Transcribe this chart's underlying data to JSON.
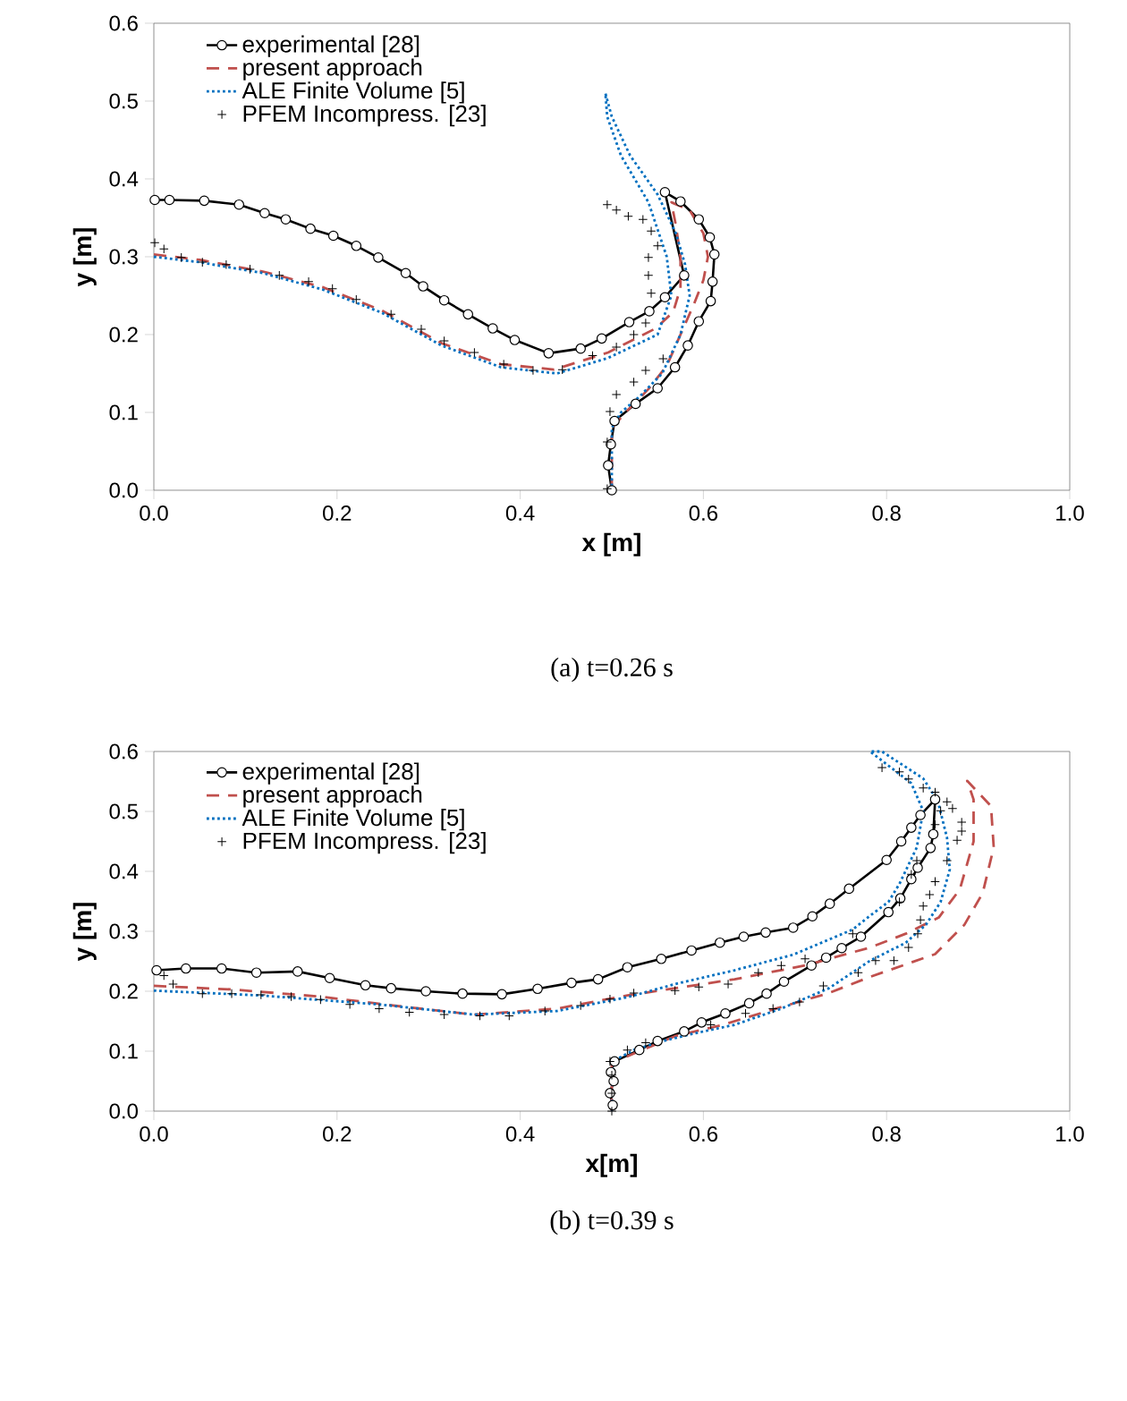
{
  "chart_data": [
    {
      "type": "line",
      "xlabel": "x [m]",
      "ylabel": "y [m]",
      "annotations": [
        "(a) t=0.26 s"
      ],
      "legend": "top left",
      "grid": false,
      "xlim": [
        0,
        1
      ],
      "ylim": [
        0,
        0.6
      ],
      "xticks": [
        {
          "value": 0,
          "label": "0.0"
        },
        {
          "value": 0.2,
          "label": "0.2"
        },
        {
          "value": 0.4,
          "label": "0.4"
        },
        {
          "value": 0.6,
          "label": "0.6"
        },
        {
          "value": 0.8,
          "label": "0.8"
        },
        {
          "value": 1,
          "label": "1.0"
        }
      ],
      "yticks": [
        {
          "value": 0,
          "label": "0.0"
        },
        {
          "value": 0.1,
          "label": "0.1"
        },
        {
          "value": 0.2,
          "label": "0.2"
        },
        {
          "value": 0.3,
          "label": "0.3"
        },
        {
          "value": 0.4,
          "label": "0.4"
        },
        {
          "value": 0.5,
          "label": "0.5"
        },
        {
          "value": 0.6,
          "label": "0.6"
        }
      ],
      "series": [
        {
          "name": "experimental [28]",
          "color": "#000000",
          "marker": "circle",
          "line_style": "solid",
          "x": [
            0.001,
            0.017,
            0.055,
            0.093,
            0.121,
            0.144,
            0.171,
            0.196,
            0.221,
            0.245,
            0.275,
            0.294,
            0.317,
            0.343,
            0.37,
            0.394,
            0.431,
            0.466,
            0.489,
            0.519,
            0.541,
            0.558,
            0.579,
            0.558,
            0.575,
            0.595,
            0.607,
            0.612,
            0.61,
            0.608,
            0.595,
            0.583,
            0.569,
            0.55,
            0.526,
            0.503,
            0.499,
            0.496,
            0.5
          ],
          "values": [
            0.373,
            0.373,
            0.372,
            0.367,
            0.356,
            0.348,
            0.336,
            0.327,
            0.314,
            0.299,
            0.279,
            0.262,
            0.244,
            0.226,
            0.208,
            0.193,
            0.176,
            0.182,
            0.195,
            0.216,
            0.23,
            0.248,
            0.276,
            0.383,
            0.371,
            0.348,
            0.325,
            0.303,
            0.268,
            0.243,
            0.217,
            0.186,
            0.158,
            0.131,
            0.111,
            0.089,
            0.059,
            0.032,
            0.0
          ]
        },
        {
          "name": "present approach",
          "color": "#c0504d",
          "marker": "none",
          "line_style": "dashed",
          "x": [
            0,
            0.05,
            0.119,
            0.184,
            0.249,
            0.314,
            0.379,
            0.437,
            0.496,
            0.548,
            0.567,
            0.575,
            0.575,
            0.57,
            0.565,
            0.585,
            0.6,
            0.605,
            0.6,
            0.59,
            0.575,
            0.56,
            0.54,
            0.515,
            0.5,
            0.5
          ],
          "values": [
            0.303,
            0.296,
            0.281,
            0.261,
            0.231,
            0.189,
            0.162,
            0.155,
            0.177,
            0.208,
            0.229,
            0.26,
            0.3,
            0.34,
            0.37,
            0.36,
            0.33,
            0.3,
            0.27,
            0.24,
            0.2,
            0.16,
            0.13,
            0.1,
            0.08,
            0
          ]
        },
        {
          "name": "ALE Finite Volume [5]",
          "color": "#0070c0",
          "marker": "none",
          "line_style": "dotted",
          "x": [
            0,
            0.05,
            0.119,
            0.184,
            0.249,
            0.314,
            0.379,
            0.44,
            0.496,
            0.55,
            0.565,
            0.56,
            0.54,
            0.51,
            0.495,
            0.493,
            0.5,
            0.52,
            0.55,
            0.57,
            0.58,
            0.585,
            0.575,
            0.555,
            0.53,
            0.51,
            0.5,
            0.5
          ],
          "values": [
            0.3,
            0.293,
            0.279,
            0.258,
            0.228,
            0.186,
            0.158,
            0.15,
            0.17,
            0.2,
            0.25,
            0.3,
            0.37,
            0.43,
            0.48,
            0.51,
            0.48,
            0.43,
            0.38,
            0.33,
            0.29,
            0.25,
            0.2,
            0.15,
            0.12,
            0.1,
            0.08,
            0
          ]
        },
        {
          "name": "PFEM Incompress. [23]",
          "type": "scatter",
          "color": "#000000",
          "marker": "cross",
          "x": [
            0.001,
            0.011,
            0.03,
            0.053,
            0.079,
            0.105,
            0.137,
            0.169,
            0.195,
            0.221,
            0.259,
            0.292,
            0.317,
            0.35,
            0.382,
            0.414,
            0.446,
            0.479,
            0.505,
            0.524,
            0.537,
            0.495,
            0.505,
            0.518,
            0.534,
            0.543,
            0.55,
            0.54,
            0.54,
            0.543,
            0.556,
            0.537,
            0.524,
            0.505,
            0.498,
            0.495,
            0.495
          ],
          "values": [
            0.318,
            0.31,
            0.299,
            0.293,
            0.29,
            0.284,
            0.276,
            0.268,
            0.259,
            0.245,
            0.226,
            0.207,
            0.192,
            0.177,
            0.162,
            0.154,
            0.155,
            0.173,
            0.184,
            0.2,
            0.215,
            0.367,
            0.36,
            0.352,
            0.348,
            0.333,
            0.314,
            0.299,
            0.276,
            0.253,
            0.169,
            0.154,
            0.139,
            0.123,
            0.101,
            0.062,
            0.002
          ]
        }
      ]
    },
    {
      "type": "line",
      "xlabel": "x[m]",
      "ylabel": "y [m]",
      "annotations": [
        "(b) t=0.39 s"
      ],
      "legend": "top left",
      "grid": false,
      "xlim": [
        0,
        1
      ],
      "ylim": [
        0,
        0.6
      ],
      "xticks": [
        {
          "value": 0,
          "label": "0.0"
        },
        {
          "value": 0.2,
          "label": "0.2"
        },
        {
          "value": 0.4,
          "label": "0.4"
        },
        {
          "value": 0.6,
          "label": "0.6"
        },
        {
          "value": 0.8,
          "label": "0.8"
        },
        {
          "value": 1,
          "label": "1.0"
        }
      ],
      "yticks": [
        {
          "value": 0,
          "label": "0.0"
        },
        {
          "value": 0.1,
          "label": "0.1"
        },
        {
          "value": 0.2,
          "label": "0.2"
        },
        {
          "value": 0.3,
          "label": "0.3"
        },
        {
          "value": 0.4,
          "label": "0.4"
        },
        {
          "value": 0.5,
          "label": "0.5"
        },
        {
          "value": 0.6,
          "label": "0.6"
        }
      ],
      "series": [
        {
          "name": "experimental [28]",
          "color": "#000000",
          "marker": "circle",
          "line_style": "solid",
          "x": [
            0.003,
            0.035,
            0.074,
            0.112,
            0.157,
            0.192,
            0.231,
            0.259,
            0.297,
            0.337,
            0.38,
            0.419,
            0.456,
            0.485,
            0.517,
            0.554,
            0.587,
            0.618,
            0.644,
            0.668,
            0.698,
            0.719,
            0.738,
            0.759,
            0.8,
            0.816,
            0.827,
            0.837,
            0.853,
            0.851,
            0.848,
            0.834,
            0.827,
            0.815,
            0.802,
            0.772,
            0.751,
            0.734,
            0.718,
            0.688,
            0.669,
            0.65,
            0.624,
            0.598,
            0.579,
            0.55,
            0.53,
            0.503,
            0.499,
            0.502,
            0.498,
            0.501
          ],
          "values": [
            0.235,
            0.238,
            0.238,
            0.231,
            0.233,
            0.222,
            0.21,
            0.205,
            0.2,
            0.196,
            0.195,
            0.204,
            0.214,
            0.22,
            0.24,
            0.254,
            0.268,
            0.281,
            0.291,
            0.298,
            0.306,
            0.325,
            0.346,
            0.371,
            0.419,
            0.45,
            0.473,
            0.494,
            0.52,
            0.462,
            0.439,
            0.406,
            0.387,
            0.355,
            0.332,
            0.291,
            0.272,
            0.256,
            0.243,
            0.216,
            0.196,
            0.18,
            0.163,
            0.148,
            0.133,
            0.117,
            0.102,
            0.083,
            0.065,
            0.05,
            0.03,
            0.01
          ]
        },
        {
          "name": "present approach",
          "color": "#c0504d",
          "marker": "none",
          "line_style": "dashed",
          "x": [
            0,
            0.085,
            0.182,
            0.279,
            0.35,
            0.44,
            0.517,
            0.569,
            0.634,
            0.711,
            0.782,
            0.821,
            0.857,
            0.88,
            0.895,
            0.895,
            0.888,
            0.914,
            0.917,
            0.905,
            0.885,
            0.853,
            0.782,
            0.737,
            0.679,
            0.621,
            0.569,
            0.53,
            0.5,
            0.5
          ],
          "values": [
            0.209,
            0.203,
            0.191,
            0.173,
            0.161,
            0.171,
            0.193,
            0.205,
            0.22,
            0.243,
            0.273,
            0.296,
            0.323,
            0.37,
            0.45,
            0.52,
            0.551,
            0.509,
            0.44,
            0.364,
            0.311,
            0.262,
            0.224,
            0.197,
            0.171,
            0.144,
            0.125,
            0.1,
            0.08,
            0
          ]
        },
        {
          "name": "ALE Finite Volume [5]",
          "color": "#0070c0",
          "marker": "none",
          "line_style": "dotted",
          "x": [
            0,
            0.117,
            0.246,
            0.35,
            0.44,
            0.517,
            0.569,
            0.634,
            0.698,
            0.763,
            0.782,
            0.802,
            0.814,
            0.833,
            0.84,
            0.827,
            0.782,
            0.795,
            0.84,
            0.856,
            0.866,
            0.869,
            0.859,
            0.843,
            0.821,
            0.782,
            0.737,
            0.685,
            0.634,
            0.588,
            0.556,
            0.524,
            0.501,
            0.5
          ],
          "values": [
            0.201,
            0.193,
            0.178,
            0.161,
            0.167,
            0.19,
            0.212,
            0.235,
            0.261,
            0.303,
            0.326,
            0.349,
            0.379,
            0.44,
            0.501,
            0.547,
            0.6,
            0.6,
            0.555,
            0.517,
            0.456,
            0.403,
            0.349,
            0.311,
            0.281,
            0.251,
            0.205,
            0.171,
            0.144,
            0.129,
            0.117,
            0.102,
            0.083,
            0
          ]
        },
        {
          "name": "PFEM Incompress. [23]",
          "type": "scatter",
          "color": "#000000",
          "marker": "cross",
          "x": [
            0.011,
            0.021,
            0.053,
            0.085,
            0.117,
            0.15,
            0.182,
            0.214,
            0.246,
            0.279,
            0.317,
            0.356,
            0.388,
            0.427,
            0.466,
            0.498,
            0.524,
            0.569,
            0.595,
            0.627,
            0.66,
            0.685,
            0.711,
            0.763,
            0.814,
            0.827,
            0.833,
            0.853,
            0.859,
            0.795,
            0.814,
            0.824,
            0.84,
            0.853,
            0.866,
            0.872,
            0.882,
            0.882,
            0.877,
            0.866,
            0.853,
            0.847,
            0.84,
            0.837,
            0.834,
            0.824,
            0.808,
            0.788,
            0.769,
            0.731,
            0.705,
            0.676,
            0.646,
            0.608,
            0.537,
            0.517,
            0.498,
            0.5,
            0.5,
            0.5
          ],
          "values": [
            0.226,
            0.212,
            0.196,
            0.196,
            0.194,
            0.191,
            0.186,
            0.178,
            0.171,
            0.165,
            0.161,
            0.159,
            0.159,
            0.167,
            0.176,
            0.187,
            0.197,
            0.201,
            0.207,
            0.212,
            0.231,
            0.243,
            0.254,
            0.296,
            0.349,
            0.395,
            0.418,
            0.478,
            0.501,
            0.573,
            0.566,
            0.554,
            0.539,
            0.532,
            0.516,
            0.505,
            0.482,
            0.467,
            0.452,
            0.418,
            0.383,
            0.361,
            0.342,
            0.319,
            0.296,
            0.273,
            0.251,
            0.251,
            0.231,
            0.209,
            0.182,
            0.171,
            0.163,
            0.144,
            0.114,
            0.102,
            0.083,
            0.06,
            0.03,
            0
          ]
        }
      ]
    }
  ]
}
